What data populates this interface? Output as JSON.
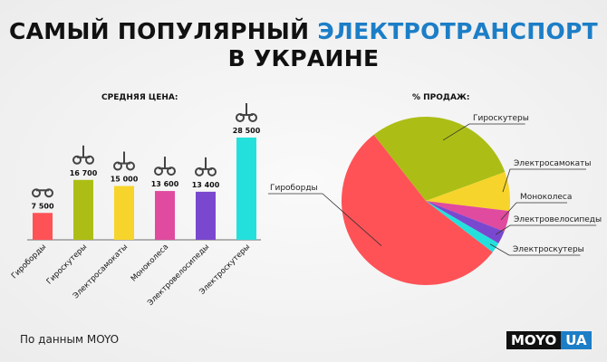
{
  "header": {
    "title_part1": "САМЫЙ ПОПУЛЯРНЫЙ ",
    "title_accent": "ЭЛЕКТРОТРАНСПОРТ",
    "title_line2": "В УКРАИНЕ"
  },
  "colors": {
    "accent": "#1c7ec7",
    "text": "#111111"
  },
  "chart_data": [
    {
      "type": "bar",
      "title": "СРЕДНЯЯ ЦЕНА:",
      "categories": [
        "Гироборды",
        "Гироскутеры",
        "Электросамокаты",
        "Моноколеса",
        "Электровелосипеды",
        "Электроскутеры"
      ],
      "values": [
        7500,
        16700,
        15000,
        13600,
        13400,
        28500
      ],
      "labels": [
        "7 500",
        "16 700",
        "15 000",
        "13 600",
        "13 400",
        "28 500"
      ],
      "colors": [
        "#fe5257",
        "#acbe15",
        "#f6d42b",
        "#e04a9f",
        "#7a48cf",
        "#24e0dc"
      ],
      "icons": [
        "hoverboard-icon",
        "gyroscooter-icon",
        "kick-scooter-icon",
        "monowheel-icon",
        "ebike-icon",
        "escooter-icon"
      ],
      "ylim": [
        0,
        28500
      ]
    },
    {
      "type": "pie",
      "title": "% ПРОДАЖ:",
      "categories": [
        "Гироборды",
        "Гироскутеры",
        "Электросамокаты",
        "Моноколеса",
        "Электровелосипеды",
        "Электроскутеры"
      ],
      "values": [
        54,
        30,
        7.5,
        4,
        2.5,
        2
      ],
      "colors": [
        "#fe5257",
        "#acbe15",
        "#f6d42b",
        "#e04a9f",
        "#7a48cf",
        "#24e0dc"
      ]
    }
  ],
  "footer": {
    "source": "По данным MOYO",
    "logo_left": "MOYO",
    "logo_right": "UA"
  }
}
